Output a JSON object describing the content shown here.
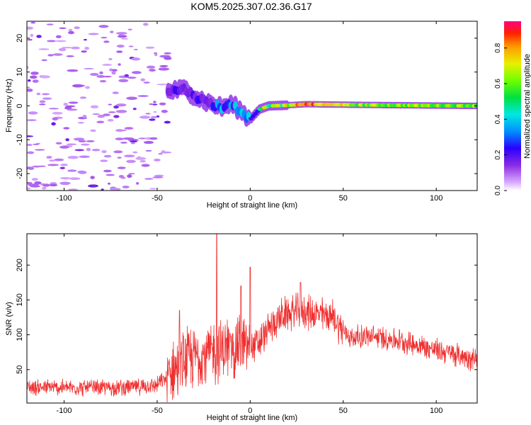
{
  "figure": {
    "title": "KOM5.2025.307.02.36.G17"
  },
  "colors": {
    "snr_line": "#ef3030",
    "axis": "#000000",
    "background": "#ffffff"
  },
  "chart_data": [
    {
      "type": "heatmap",
      "title": "KOM5.2025.307.02.36.G17",
      "xlabel": "Height of straight line (km)",
      "ylabel": "Frequency (Hz)",
      "xlim": [
        -120,
        122
      ],
      "ylim": [
        -25,
        25
      ],
      "x_ticks": [
        -100,
        -50,
        0,
        50,
        100
      ],
      "y_ticks": [
        -20,
        -10,
        0,
        10,
        20
      ],
      "colorbar": {
        "label": "Normalized spectral amplitude",
        "range": [
          0.0,
          0.95
        ],
        "ticks": [
          0.0,
          0.2,
          0.4,
          0.6,
          0.8
        ],
        "colormap": "rainbow (violet-blue-cyan-green-yellow-orange-red-magenta)"
      },
      "features": [
        {
          "region": "scattered noise",
          "x_range": [
            -120,
            -42
          ],
          "freq_range": [
            -25,
            25
          ],
          "amplitude": "0.0-0.15"
        },
        {
          "region": "doppler trace",
          "points": [
            [
              -42,
              4.5
            ],
            [
              -35,
              5.0
            ],
            [
              -30,
              3.0
            ],
            [
              -25,
              1.5
            ],
            [
              -20,
              0.5
            ],
            [
              -15,
              -0.5
            ],
            [
              -10,
              0.5
            ],
            [
              -5,
              -1.5
            ],
            [
              0,
              -4.0
            ],
            [
              5,
              -1.0
            ],
            [
              10,
              0.0
            ],
            [
              20,
              0.2
            ],
            [
              30,
              0.5
            ],
            [
              60,
              0.3
            ],
            [
              120,
              0.0
            ]
          ],
          "amplitude": "0.1-0.95"
        }
      ]
    },
    {
      "type": "line",
      "xlabel": "Height of straight line (km)",
      "ylabel": "SNR (v/v)",
      "xlim": [
        -120,
        122
      ],
      "ylim": [
        2,
        245
      ],
      "x_ticks": [
        -100,
        -50,
        0,
        50,
        100
      ],
      "y_ticks": [
        50,
        100,
        150,
        200
      ],
      "series": [
        {
          "name": "SNR",
          "envelope_x": [
            -120,
            -100,
            -80,
            -60,
            -50,
            -45,
            -40,
            -35,
            -30,
            -25,
            -20,
            -15,
            -10,
            -5,
            0,
            5,
            10,
            15,
            20,
            25,
            30,
            35,
            40,
            45,
            50,
            55,
            60,
            70,
            80,
            90,
            100,
            110,
            122
          ],
          "envelope_mean": [
            25,
            24,
            24,
            25,
            28,
            38,
            52,
            62,
            68,
            72,
            75,
            78,
            82,
            86,
            80,
            88,
            108,
            123,
            130,
            133,
            133,
            130,
            128,
            125,
            105,
            95,
            98,
            96,
            92,
            85,
            78,
            72,
            65
          ],
          "spikes": [
            [
              -18,
              245
            ],
            [
              0,
              197
            ],
            [
              -5,
              170
            ],
            [
              -38,
              135
            ],
            [
              27,
              175
            ]
          ]
        }
      ]
    }
  ]
}
